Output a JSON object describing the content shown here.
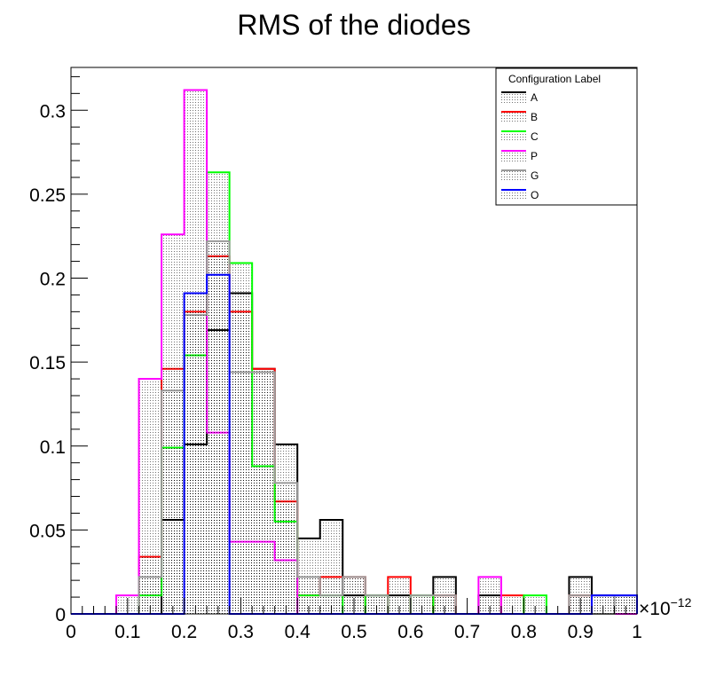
{
  "chart_data": {
    "type": "histogram",
    "title": "RMS of the diodes",
    "xlabel": "",
    "ylabel": "",
    "x_multiplier": "×10",
    "x_exponent": "−12",
    "xlim": [
      0,
      1
    ],
    "ylim": [
      0,
      0.3255
    ],
    "bin_width": 0.04,
    "x_ticks": [
      "0",
      "0.1",
      "0.2",
      "0.3",
      "0.4",
      "0.5",
      "0.6",
      "0.7",
      "0.8",
      "0.9",
      "1"
    ],
    "x_tick_values": [
      0,
      0.1,
      0.2,
      0.3,
      0.4,
      0.5,
      0.6,
      0.7,
      0.8,
      0.9,
      1
    ],
    "y_ticks": [
      "0",
      "0.05",
      "0.1",
      "0.15",
      "0.2",
      "0.25",
      "0.3"
    ],
    "y_tick_values": [
      0,
      0.05,
      0.1,
      0.15,
      0.2,
      0.25,
      0.3
    ],
    "grid": false,
    "legend": {
      "title": "Configuration Label",
      "position": "top-right"
    },
    "series": [
      {
        "name": "A",
        "color": "#000000",
        "values": [
          0,
          0,
          0,
          0,
          0.056,
          0.101,
          0.169,
          0.191,
          0.146,
          0.101,
          0.045,
          0.056,
          0.011,
          0.011,
          0.011,
          0,
          0.022,
          0,
          0.011,
          0,
          0,
          0,
          0.022,
          0.011,
          0.011
        ]
      },
      {
        "name": "B",
        "color": "#ff0000",
        "values": [
          0,
          0,
          0,
          0.034,
          0.146,
          0.18,
          0.213,
          0.18,
          0.146,
          0.067,
          0.011,
          0.022,
          0.022,
          0,
          0.022,
          0,
          0.011,
          0,
          0,
          0.011,
          0,
          0,
          0.011,
          0,
          0
        ]
      },
      {
        "name": "C",
        "color": "#00ff00",
        "values": [
          0,
          0,
          0,
          0.011,
          0.099,
          0.154,
          0.263,
          0.209,
          0.088,
          0.055,
          0.011,
          0.011,
          0,
          0.011,
          0,
          0.011,
          0,
          0,
          0,
          0,
          0.011,
          0,
          0,
          0,
          0
        ]
      },
      {
        "name": "P",
        "color": "#ff00ff",
        "values": [
          0,
          0,
          0.011,
          0.14,
          0.226,
          0.312,
          0.108,
          0.043,
          0.043,
          0.032,
          0,
          0,
          0,
          0,
          0,
          0,
          0,
          0,
          0.022,
          0,
          0,
          0,
          0,
          0,
          0
        ]
      },
      {
        "name": "G",
        "color": "#999999",
        "values": [
          0,
          0,
          0,
          0.022,
          0.133,
          0.178,
          0.222,
          0.144,
          0.144,
          0.078,
          0.022,
          0.011,
          0.022,
          0.011,
          0,
          0.011,
          0.011,
          0,
          0,
          0,
          0,
          0,
          0.011,
          0,
          0.011
        ]
      },
      {
        "name": "O",
        "color": "#0000ff",
        "values": [
          0,
          0,
          0,
          0,
          0,
          0.191,
          0.202,
          0,
          0,
          0,
          0,
          0,
          0,
          0,
          0,
          0,
          0,
          0,
          0,
          0,
          0,
          0,
          0,
          0.011,
          0.011
        ]
      }
    ]
  }
}
